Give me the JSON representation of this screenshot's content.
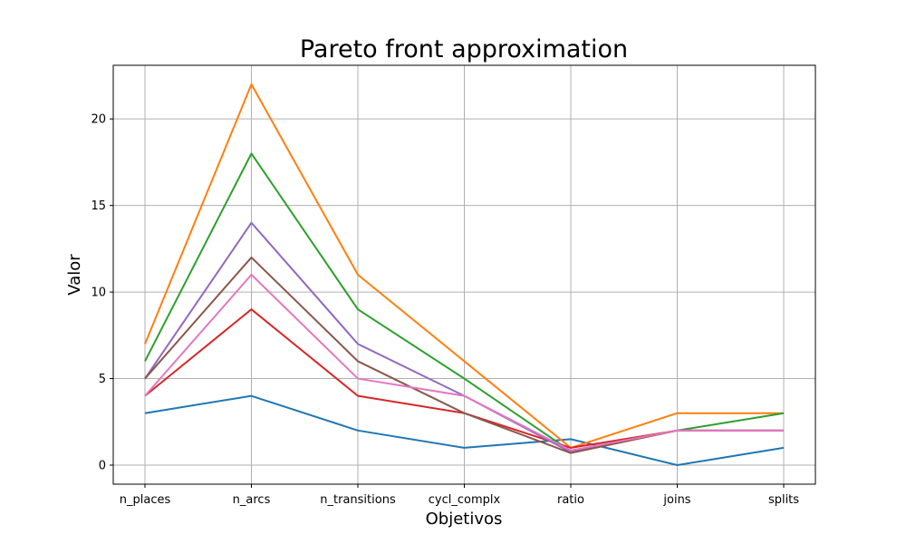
{
  "chart_data": {
    "type": "line",
    "title": "Pareto front approximation",
    "xlabel": "Objetivos",
    "ylabel": "Valor",
    "categories": [
      "n_places",
      "n_arcs",
      "n_transitions",
      "cycl_complx",
      "ratio",
      "joins",
      "splits"
    ],
    "ylim": [
      -1.1,
      23.1
    ],
    "yticks": [
      0,
      5,
      10,
      15,
      20
    ],
    "grid": true,
    "series": [
      {
        "color": "#1f77b4",
        "values": [
          3,
          4,
          2,
          1,
          1.5,
          0,
          1
        ]
      },
      {
        "color": "#ff7f0e",
        "values": [
          7,
          22,
          11,
          6,
          1,
          3,
          3
        ]
      },
      {
        "color": "#2ca02c",
        "values": [
          6,
          18,
          9,
          5,
          0.8,
          2,
          3
        ]
      },
      {
        "color": "#d62728",
        "values": [
          4,
          9,
          4,
          3,
          1,
          2,
          2
        ]
      },
      {
        "color": "#9467bd",
        "values": [
          5,
          14,
          7,
          4,
          0.75,
          2,
          2
        ]
      },
      {
        "color": "#8c564b",
        "values": [
          5,
          12,
          6,
          3,
          0.7,
          2,
          2
        ]
      },
      {
        "color": "#e377c2",
        "values": [
          4,
          11,
          5,
          4,
          0.85,
          2,
          2
        ]
      }
    ]
  }
}
